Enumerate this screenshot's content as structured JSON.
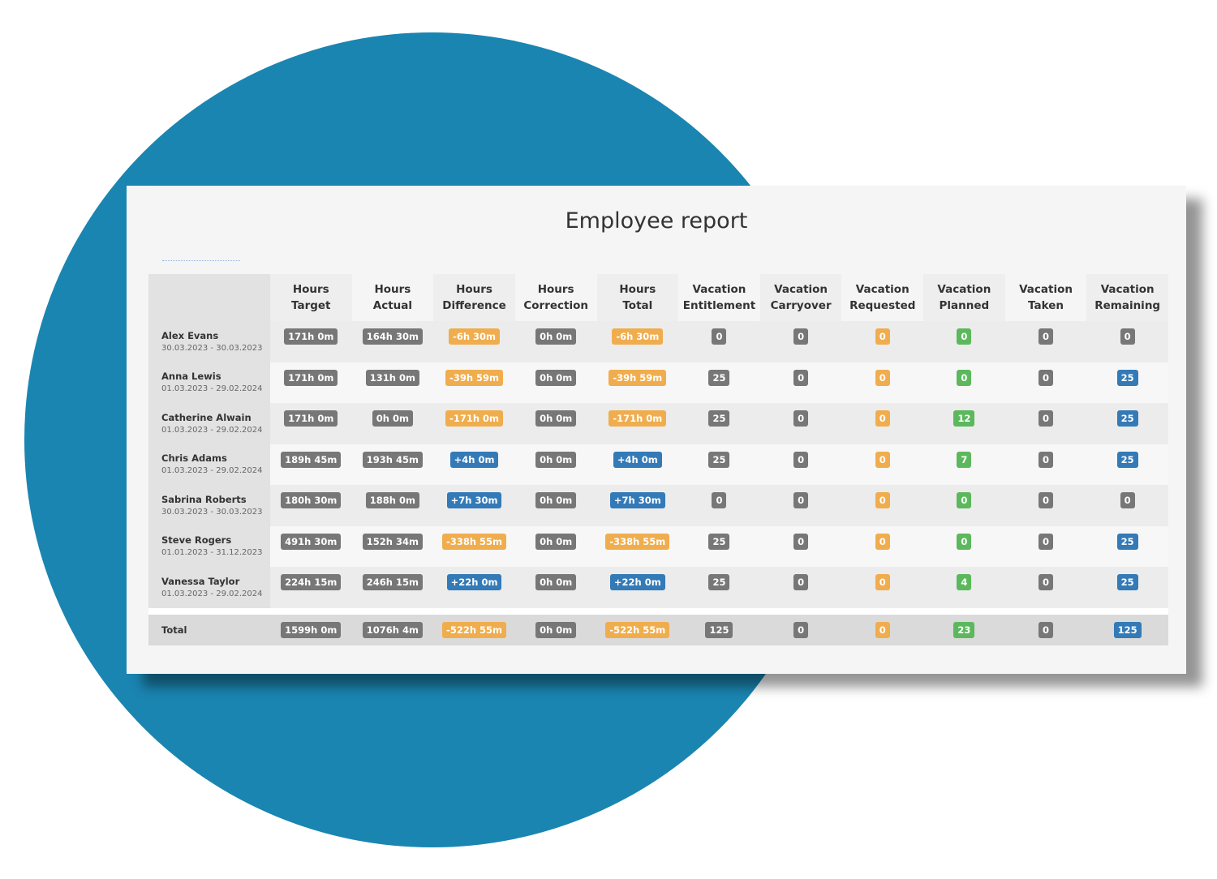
{
  "report": {
    "title": "Employee report"
  },
  "colors": {
    "gray": "#777777",
    "orange": "#f0ad4e",
    "blue": "#337ab7",
    "green": "#5cb85c",
    "circle": "#1a85b1"
  },
  "columns": [
    "Hours\nTarget",
    "Hours\nActual",
    "Hours\nDifference",
    "Hours\nCorrection",
    "Hours\nTotal",
    "Vacation\nEntitlement",
    "Vacation\nCarryover",
    "Vacation\nRequested",
    "Vacation\nPlanned",
    "Vacation\nTaken",
    "Vacation\nRemaining"
  ],
  "rows": [
    {
      "name": "Alex Evans",
      "range": "30.03.2023 - 30.03.2023",
      "values": [
        "171h 0m",
        "164h 30m",
        "-6h 30m",
        "0h 0m",
        "-6h 30m",
        "0",
        "0",
        "0",
        "0",
        "0",
        "0"
      ],
      "colors": [
        "gray",
        "gray",
        "orange",
        "gray",
        "orange",
        "gray",
        "gray",
        "orange",
        "green",
        "gray",
        "gray"
      ]
    },
    {
      "name": "Anna Lewis",
      "range": "01.03.2023 - 29.02.2024",
      "values": [
        "171h 0m",
        "131h 0m",
        "-39h 59m",
        "0h 0m",
        "-39h 59m",
        "25",
        "0",
        "0",
        "0",
        "0",
        "25"
      ],
      "colors": [
        "gray",
        "gray",
        "orange",
        "gray",
        "orange",
        "gray",
        "gray",
        "orange",
        "green",
        "gray",
        "blue"
      ]
    },
    {
      "name": "Catherine Alwain",
      "range": "01.03.2023 - 29.02.2024",
      "values": [
        "171h 0m",
        "0h 0m",
        "-171h 0m",
        "0h 0m",
        "-171h 0m",
        "25",
        "0",
        "0",
        "12",
        "0",
        "25"
      ],
      "colors": [
        "gray",
        "gray",
        "orange",
        "gray",
        "orange",
        "gray",
        "gray",
        "orange",
        "green",
        "gray",
        "blue"
      ]
    },
    {
      "name": "Chris Adams",
      "range": "01.03.2023 - 29.02.2024",
      "values": [
        "189h 45m",
        "193h 45m",
        "+4h 0m",
        "0h 0m",
        "+4h 0m",
        "25",
        "0",
        "0",
        "7",
        "0",
        "25"
      ],
      "colors": [
        "gray",
        "gray",
        "blue",
        "gray",
        "blue",
        "gray",
        "gray",
        "orange",
        "green",
        "gray",
        "blue"
      ]
    },
    {
      "name": "Sabrina Roberts",
      "range": "30.03.2023 - 30.03.2023",
      "values": [
        "180h 30m",
        "188h 0m",
        "+7h 30m",
        "0h 0m",
        "+7h 30m",
        "0",
        "0",
        "0",
        "0",
        "0",
        "0"
      ],
      "colors": [
        "gray",
        "gray",
        "blue",
        "gray",
        "blue",
        "gray",
        "gray",
        "orange",
        "green",
        "gray",
        "gray"
      ]
    },
    {
      "name": "Steve Rogers",
      "range": "01.01.2023 - 31.12.2023",
      "values": [
        "491h 30m",
        "152h 34m",
        "-338h 55m",
        "0h 0m",
        "-338h 55m",
        "25",
        "0",
        "0",
        "0",
        "0",
        "25"
      ],
      "colors": [
        "gray",
        "gray",
        "orange",
        "gray",
        "orange",
        "gray",
        "gray",
        "orange",
        "green",
        "gray",
        "blue"
      ]
    },
    {
      "name": "Vanessa Taylor",
      "range": "01.03.2023 - 29.02.2024",
      "values": [
        "224h 15m",
        "246h 15m",
        "+22h 0m",
        "0h 0m",
        "+22h 0m",
        "25",
        "0",
        "0",
        "4",
        "0",
        "25"
      ],
      "colors": [
        "gray",
        "gray",
        "blue",
        "gray",
        "blue",
        "gray",
        "gray",
        "orange",
        "green",
        "gray",
        "blue"
      ]
    }
  ],
  "total": {
    "label": "Total",
    "values": [
      "1599h 0m",
      "1076h 4m",
      "-522h 55m",
      "0h 0m",
      "-522h 55m",
      "125",
      "0",
      "0",
      "23",
      "0",
      "125"
    ],
    "colors": [
      "gray",
      "gray",
      "orange",
      "gray",
      "orange",
      "gray",
      "gray",
      "orange",
      "green",
      "gray",
      "blue"
    ]
  }
}
